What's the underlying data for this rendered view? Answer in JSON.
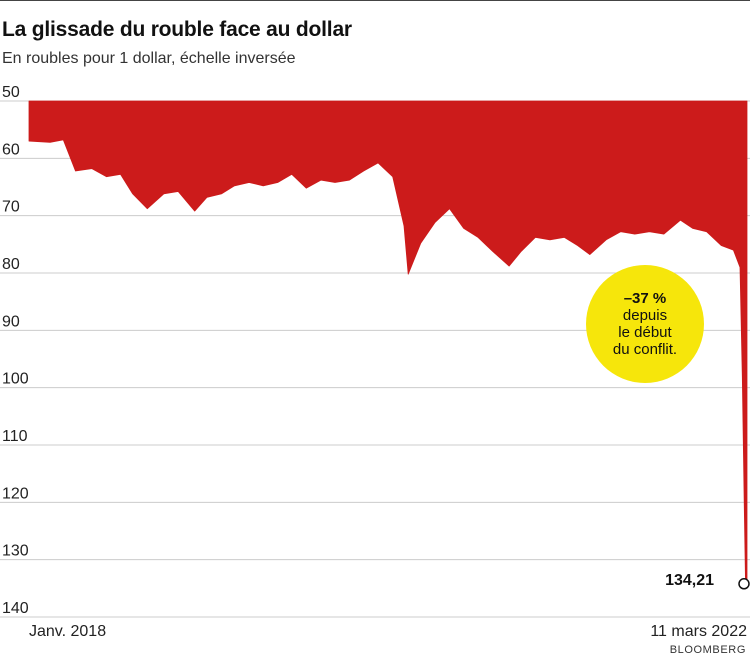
{
  "title": "La glissade du rouble face au dollar",
  "subtitle": "En roubles pour 1 dollar, échelle inversée",
  "source": "BLOOMBERG",
  "colors": {
    "area": "#cc1b1b",
    "callout": "#f6e60b",
    "grid": "#cccccc"
  },
  "annotation": {
    "pct": "–37 %",
    "line1": "depuis",
    "line2": "le début",
    "line3": "du conflit."
  },
  "chart_data": {
    "type": "area",
    "inverted_y": true,
    "ylim": [
      50,
      140
    ],
    "yticks": [
      50,
      60,
      70,
      80,
      90,
      100,
      110,
      120,
      130,
      140
    ],
    "ytick_labels": [
      "50",
      "60",
      "70",
      "80",
      "90",
      "100",
      "110",
      "120",
      "130",
      "140"
    ],
    "xlim": [
      "2018-01-01",
      "2022-03-11"
    ],
    "x_labels": [
      "Janv. 2018",
      "11 mars 2022"
    ],
    "grid": true,
    "last_value_label": "134,21",
    "x": [
      "2018-01-01",
      "2018-02-15",
      "2018-03-15",
      "2018-04-10",
      "2018-05-15",
      "2018-06-15",
      "2018-07-15",
      "2018-08-10",
      "2018-09-10",
      "2018-10-15",
      "2018-11-15",
      "2018-12-20",
      "2019-01-15",
      "2019-02-15",
      "2019-03-15",
      "2019-04-15",
      "2019-05-15",
      "2019-06-15",
      "2019-07-15",
      "2019-08-15",
      "2019-09-15",
      "2019-10-15",
      "2019-11-15",
      "2019-12-15",
      "2020-01-15",
      "2020-02-15",
      "2020-03-10",
      "2020-03-19",
      "2020-04-15",
      "2020-05-15",
      "2020-06-15",
      "2020-07-15",
      "2020-08-15",
      "2020-09-15",
      "2020-10-20",
      "2020-11-15",
      "2020-12-15",
      "2021-01-15",
      "2021-02-15",
      "2021-03-15",
      "2021-04-10",
      "2021-05-15",
      "2021-06-15",
      "2021-07-15",
      "2021-08-15",
      "2021-09-15",
      "2021-10-20",
      "2021-11-15",
      "2021-12-15",
      "2022-01-15",
      "2022-02-10",
      "2022-02-24",
      "2022-03-01",
      "2022-03-05",
      "2022-03-08",
      "2022-03-11"
    ],
    "y": [
      57,
      57,
      57,
      62,
      62,
      63,
      63,
      66,
      69,
      66,
      66,
      69,
      67,
      66,
      65,
      64,
      65,
      64,
      63,
      65,
      64,
      64,
      64,
      62,
      61,
      63,
      72,
      80,
      75,
      71,
      69,
      72,
      74,
      76,
      79,
      76,
      74,
      74,
      74,
      75,
      77,
      74,
      73,
      73,
      73,
      73,
      71,
      72,
      73,
      75,
      76,
      79,
      98,
      120,
      135,
      134.21
    ]
  }
}
